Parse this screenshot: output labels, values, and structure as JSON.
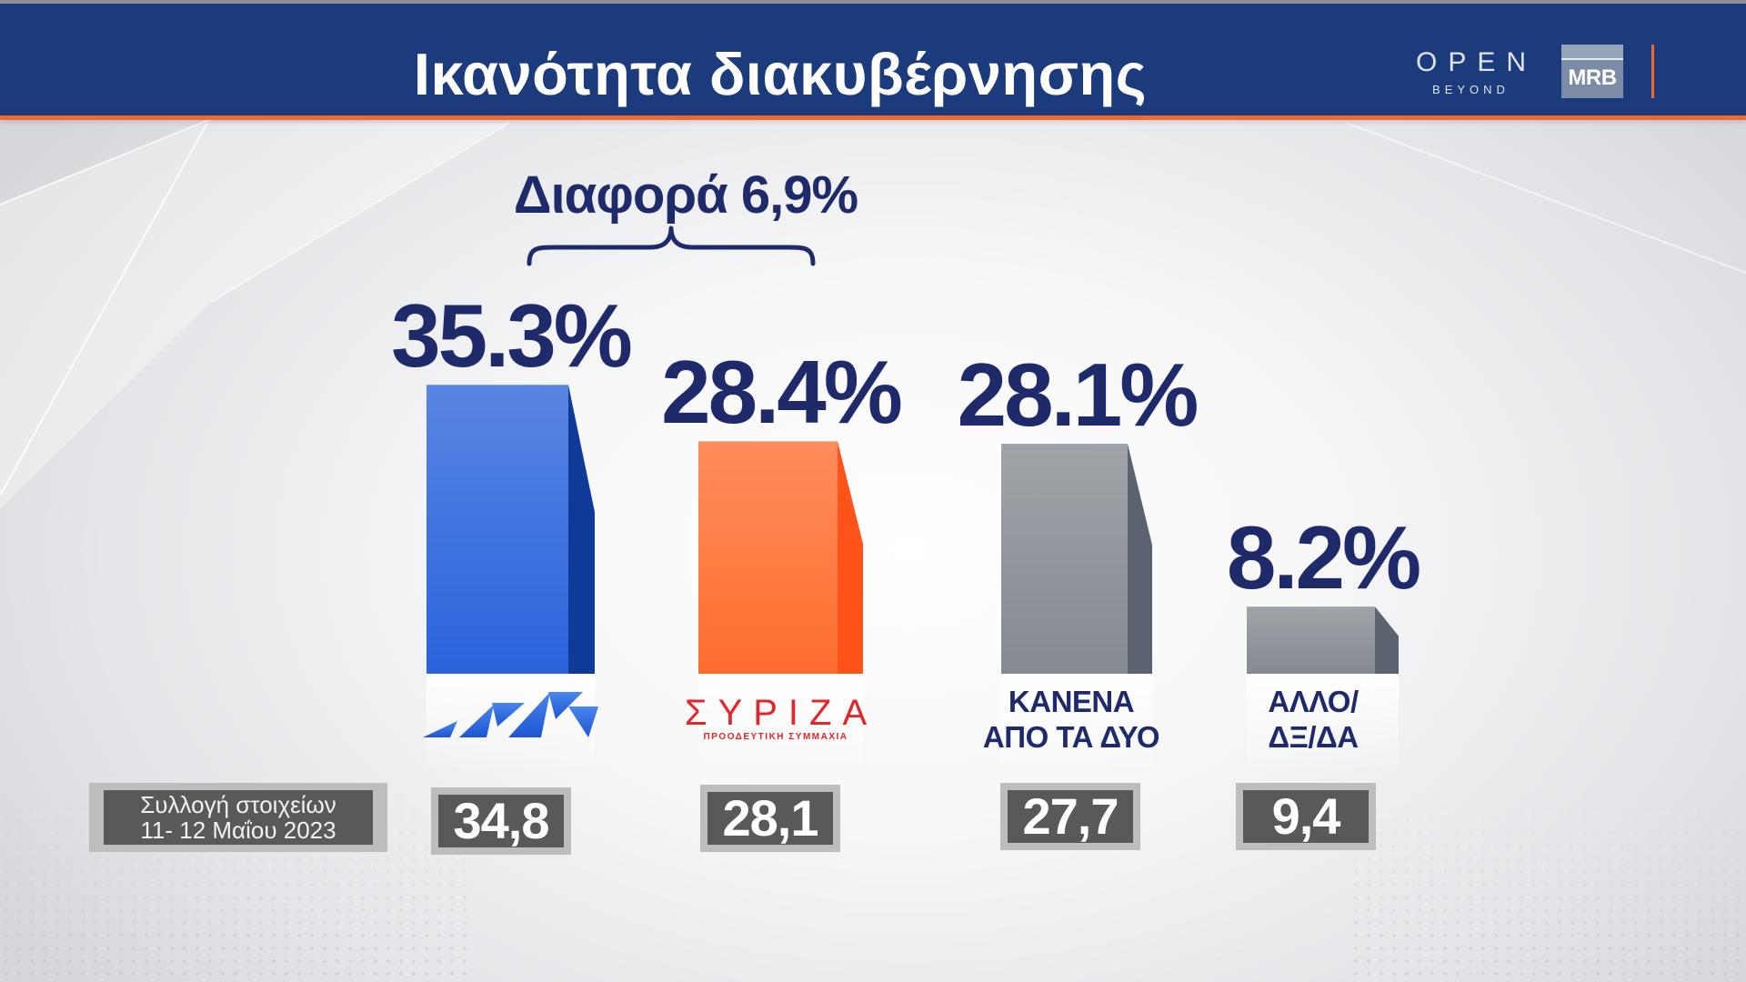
{
  "header": {
    "open_logo_text": "OPEN",
    "open_logo_subtext": "BEYOND",
    "mrb_logo_text": "MRB"
  },
  "logos": {
    "syriza_subtext": "ΠΡΟΟΔΕΥΤΙΚΗ ΣΥΜΜΑΧΙΑ"
  },
  "fieldwork": {
    "line1": "Συλλογή στοιχείων",
    "line2": "11- 12 Μαΐου 2023"
  },
  "colors": {
    "header_bg": "#1c3b7c",
    "accent_orange": "#f26a2b",
    "text_navy": "#1f2a6b",
    "previous_box_bg": "#58595b",
    "previous_box_frame": "#bdbdbf"
  },
  "chart_data": {
    "type": "bar",
    "title": "Ικανότητα διακυβέρνησης",
    "annotation": "Διαφορά 6,9%",
    "categories": [
      "",
      "ΣΥΡΙΖΑ",
      "ΚΑΝΕΝΑ\nΑΠΟ ΤΑ ΔΥΟ",
      "ΑΛΛΟ/\nΔΞ/ΔΑ"
    ],
    "category_logos": [
      "nd-logo",
      "syriza-logo",
      "",
      ""
    ],
    "values": [
      35.3,
      28.4,
      28.1,
      8.2
    ],
    "value_labels": [
      "35.3%",
      "28.4%",
      "28.1%",
      "8.2%"
    ],
    "previous_values": [
      "34,8",
      "28,1",
      "27,7",
      "9,4"
    ],
    "bar_colors": [
      "#2a63dc",
      "#ff6d2e",
      "#858a91",
      "#858a91"
    ],
    "bar_side_colors": [
      "#0f3a98",
      "#ff5219",
      "#5b6371",
      "#5b6371"
    ],
    "grid": false,
    "legend": false
  }
}
